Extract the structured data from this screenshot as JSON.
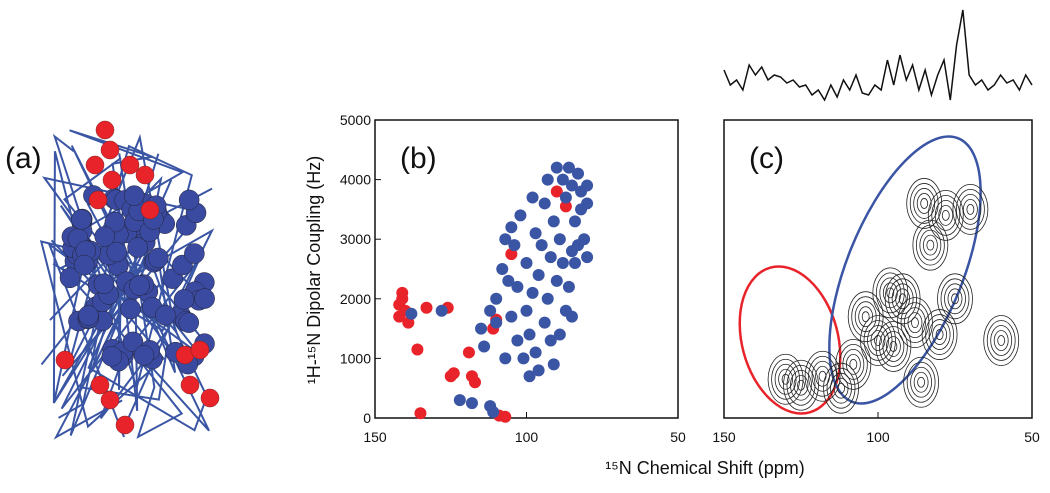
{
  "panel_a": {
    "label": "(a)"
  },
  "shared_x_label": "¹⁵N Chemical Shift (ppm)",
  "chart_data": [
    {
      "type": "scatter",
      "panel_label": "(b)",
      "y_label": "¹H-¹⁵N Dipolar Coupling (Hz)",
      "xlim": [
        150,
        50
      ],
      "xticks": [
        150,
        100,
        50
      ],
      "ylim": [
        0,
        5000
      ],
      "yticks": [
        0,
        1000,
        2000,
        3000,
        4000,
        5000
      ],
      "series": [
        {
          "color": "#e8232a",
          "x": [
            142,
            142,
            141,
            141,
            140,
            139,
            136,
            135,
            133,
            126,
            125,
            124,
            119,
            118,
            117,
            111,
            110,
            109,
            107,
            105,
            90,
            87
          ],
          "values": [
            1700,
            1900,
            2000,
            2100,
            1800,
            1600,
            1150,
            80,
            1850,
            1850,
            700,
            750,
            1100,
            700,
            600,
            1500,
            1650,
            40,
            20,
            2750,
            3800,
            3550
          ]
        },
        {
          "color": "#3a55a4",
          "x": [
            138,
            128,
            122,
            118,
            115,
            114,
            112,
            112,
            111,
            110,
            110,
            108,
            107,
            107,
            106,
            105,
            105,
            104,
            103,
            103,
            102,
            101,
            100,
            100,
            99,
            99,
            98,
            98,
            97,
            97,
            96,
            96,
            95,
            94,
            94,
            93,
            93,
            92,
            92,
            91,
            91,
            90,
            90,
            89,
            89,
            88,
            88,
            87,
            87,
            86,
            86,
            85,
            85,
            85,
            84,
            84,
            83,
            83,
            82,
            82,
            81,
            80,
            80,
            80
          ],
          "values": [
            1750,
            1800,
            300,
            250,
            1500,
            1200,
            1800,
            200,
            100,
            1600,
            2000,
            2500,
            3000,
            1000,
            2300,
            3200,
            1700,
            2900,
            2200,
            1300,
            3400,
            1000,
            2600,
            1800,
            700,
            1400,
            3700,
            2100,
            1100,
            3100,
            2400,
            800,
            2900,
            1600,
            3600,
            2000,
            4000,
            1300,
            2700,
            3300,
            900,
            4200,
            2300,
            1400,
            3000,
            4000,
            2600,
            3700,
            1800,
            4200,
            2200,
            3900,
            2800,
            1700,
            3300,
            2600,
            4100,
            2900,
            3800,
            3500,
            3000,
            3900,
            3600,
            2700
          ]
        }
      ]
    },
    {
      "type": "contour",
      "panel_label": "(c)",
      "xlim": [
        150,
        50
      ],
      "xticks": [
        150,
        100,
        50
      ],
      "ylim": [
        0,
        5000
      ],
      "peaks": {
        "x": [
          125,
          118,
          112,
          108,
          100,
          95,
          88,
          86,
          92,
          96,
          80,
          78,
          85,
          83,
          75,
          70,
          60,
          130,
          104
        ],
        "values": [
          550,
          700,
          500,
          900,
          1300,
          1200,
          1600,
          600,
          2000,
          2100,
          1400,
          3400,
          3600,
          2900,
          2000,
          3500,
          1300,
          650,
          1700
        ]
      },
      "projection": [
        0.35,
        0.2,
        0.25,
        0.15,
        0.4,
        0.3,
        0.38,
        0.25,
        0.3,
        0.28,
        0.22,
        0.25,
        0.18,
        0.2,
        0.1,
        0.15,
        0.05,
        0.2,
        0.08,
        0.25,
        0.15,
        0.3,
        0.12,
        0.1,
        0.2,
        0.15,
        0.45,
        0.2,
        0.5,
        0.25,
        0.4,
        0.15,
        0.35,
        0.1,
        0.3,
        0.45,
        0.05,
        0.6,
        0.95,
        0.3,
        0.2,
        0.25,
        0.15,
        0.2,
        0.3,
        0.22,
        0.25,
        0.15,
        0.3,
        0.2
      ]
    }
  ]
}
